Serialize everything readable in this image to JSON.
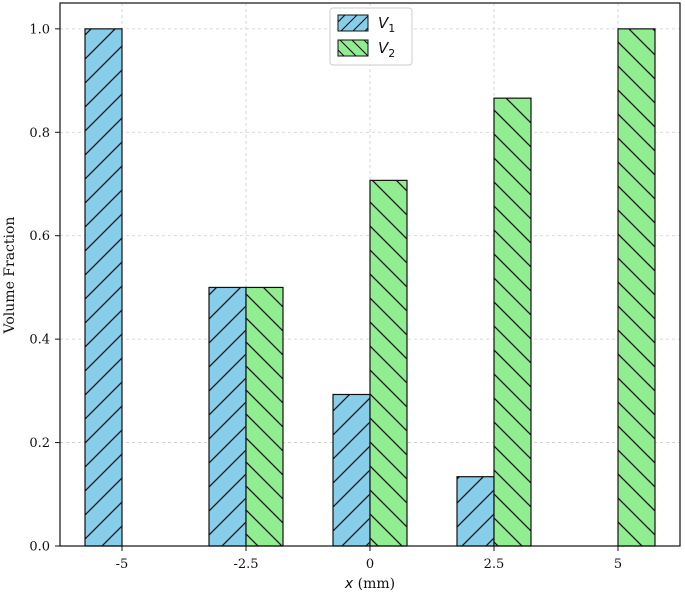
{
  "chart_data": {
    "type": "bar",
    "categories": [
      "-5",
      "-2.5",
      "0",
      "2.5",
      "5"
    ],
    "series": [
      {
        "name": "V1",
        "name_base": "V",
        "name_sub": "1",
        "values": [
          1.0,
          0.5,
          0.293,
          0.134,
          0.0
        ],
        "color": "#87ceeb",
        "hatch": "forward"
      },
      {
        "name": "V2",
        "name_base": "V",
        "name_sub": "2",
        "values": [
          0.0,
          0.5,
          0.707,
          0.866,
          1.0
        ],
        "color": "#90ee90",
        "hatch": "backward"
      }
    ],
    "xlabel_var": "x",
    "xlabel_unit": " (mm)",
    "ylabel": "Volume Fraction",
    "ylim": [
      0,
      1.05
    ],
    "yticks": [
      "0.0",
      "0.2",
      "0.4",
      "0.6",
      "0.8",
      "1.0"
    ],
    "grid": true,
    "legend_position": "top-center"
  }
}
